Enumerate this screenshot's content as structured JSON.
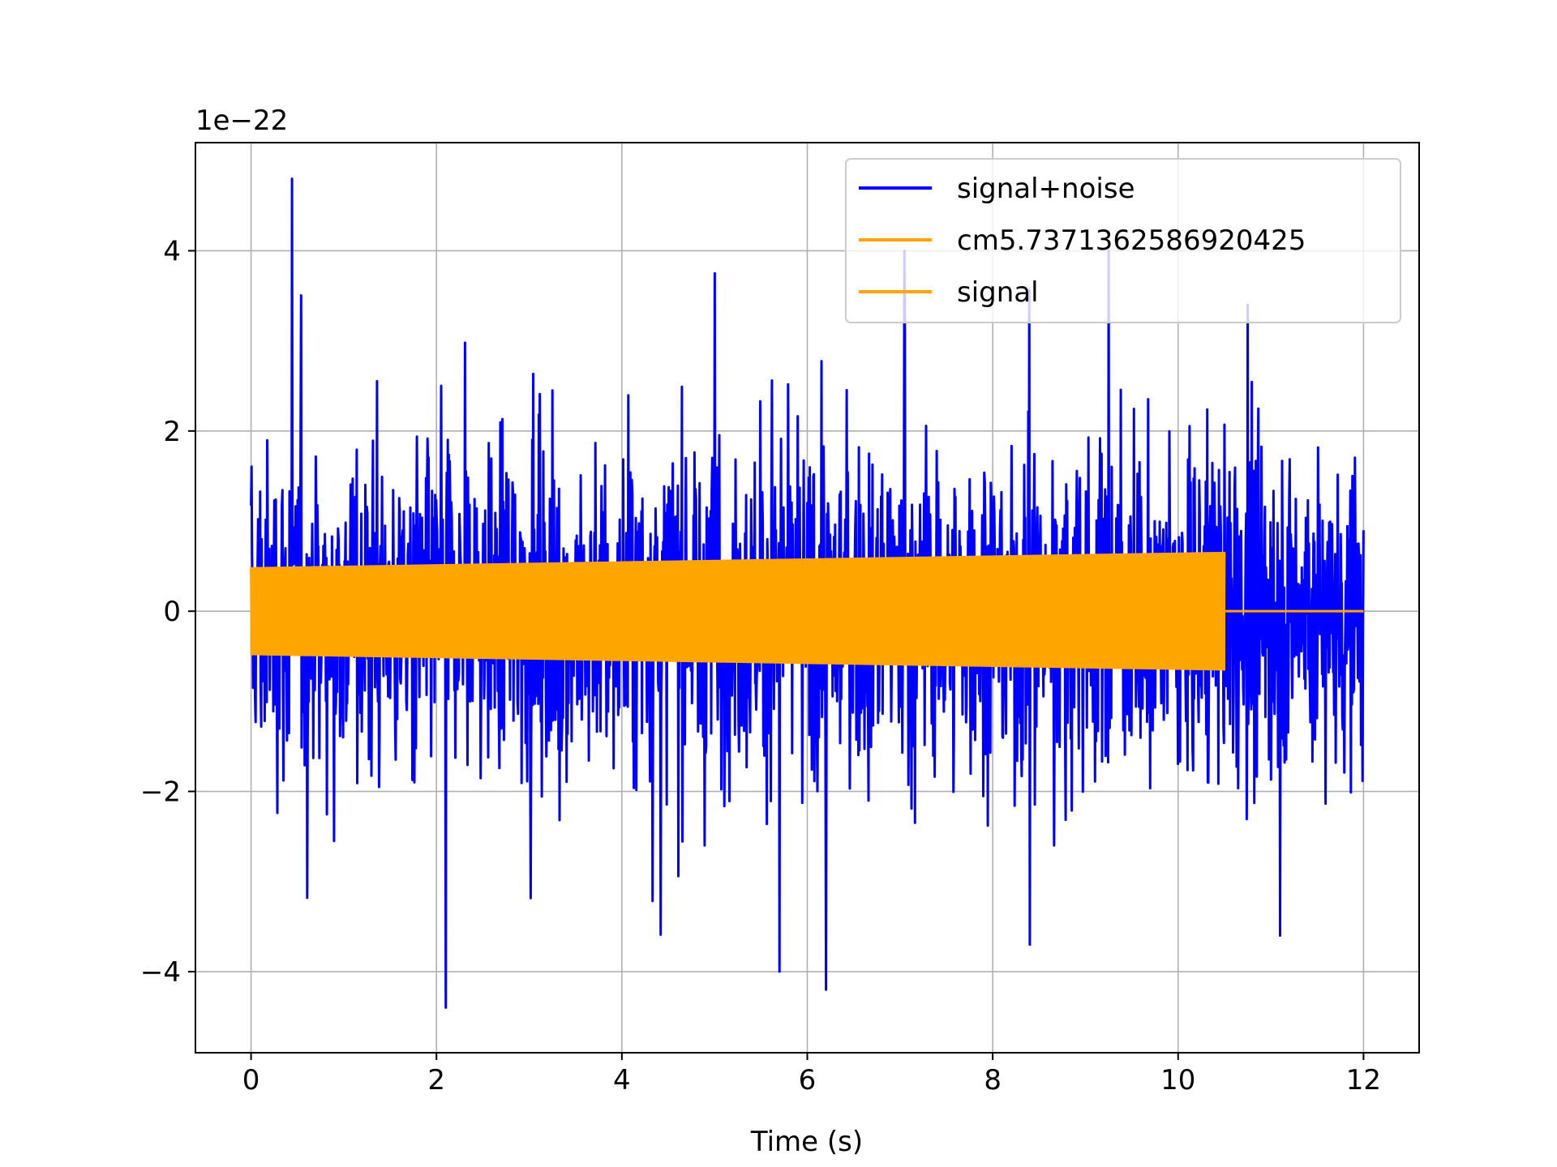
{
  "chart_data": {
    "type": "line",
    "xlabel": "Time (s)",
    "ylabel": "",
    "offset_text": "1e−22",
    "xlim": [
      -0.6,
      12.6
    ],
    "ylim": [
      -4.9,
      5.2
    ],
    "xticks": [
      0,
      2,
      4,
      6,
      8,
      10,
      12
    ],
    "xtick_labels": [
      "0",
      "2",
      "4",
      "6",
      "8",
      "10",
      "12"
    ],
    "yticks": [
      -4,
      -2,
      0,
      2,
      4
    ],
    "ytick_labels": [
      "−4",
      "−2",
      "0",
      "2",
      "4"
    ],
    "grid": true,
    "legend_position": "upper right",
    "series": [
      {
        "name": "signal+noise",
        "color": "#0000ff",
        "kind": "noise",
        "x_range": [
          0,
          12
        ],
        "typical_amplitude": 1.6,
        "max": 4.8,
        "min": -4.4,
        "notable_spikes": [
          {
            "x": 0.44,
            "y": 4.8
          },
          {
            "x": 7.05,
            "y": 4.0
          },
          {
            "x": 9.25,
            "y": 4.0
          },
          {
            "x": 5.0,
            "y": 3.75
          },
          {
            "x": 10.75,
            "y": 3.4
          },
          {
            "x": 2.1,
            "y": -4.4
          },
          {
            "x": 6.2,
            "y": -4.2
          },
          {
            "x": 5.7,
            "y": -4.0
          },
          {
            "x": 11.1,
            "y": -3.6
          },
          {
            "x": 8.4,
            "y": -3.7
          }
        ]
      },
      {
        "name": "cm5.7371362586920425",
        "color": "#ffa500",
        "kind": "chirp",
        "x_range": [
          0,
          10.5
        ],
        "amplitude_start": 0.48,
        "amplitude_end": 0.65
      },
      {
        "name": "signal",
        "color": "#ffa500",
        "kind": "flat",
        "x_range": [
          10.5,
          12
        ],
        "value": 0.0
      }
    ]
  }
}
